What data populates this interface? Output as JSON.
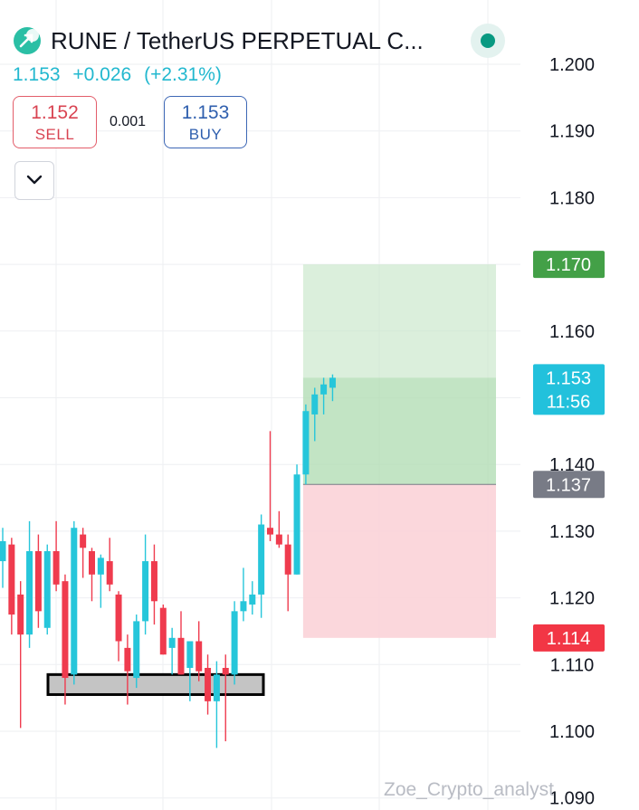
{
  "header": {
    "title": "RUNE / TetherUS PERPETUAL C...",
    "last_price": "1.153",
    "change": "+0.026",
    "change_pct": "(+2.31%)",
    "sell_price": "1.152",
    "sell_label": "SELL",
    "spread": "0.001",
    "buy_price": "1.153",
    "buy_label": "BUY",
    "status_color": "#089981"
  },
  "watermark": "Zoe_Crypto_analyst",
  "colors": {
    "up": "#26c6da",
    "down": "#ef3b4e",
    "grid": "#eeeff2",
    "axis_text": "#131722",
    "profit_zone": "#c8e6c9",
    "loss_zone": "#fbd3d8"
  },
  "chart_data": {
    "type": "candlestick",
    "title": "RUNE / TetherUS PERPETUAL C...",
    "ylim": [
      1.09,
      1.2
    ],
    "y_ticks": [
      "1.200",
      "1.190",
      "1.180",
      "1.170",
      "1.160",
      "1.153",
      "1.140",
      "1.137",
      "1.130",
      "1.120",
      "1.114",
      "1.110",
      "1.100",
      "1.090"
    ],
    "grid": true,
    "price_labels": [
      {
        "label": "1.170",
        "sub": "",
        "color": "#43a047",
        "value": 1.17
      },
      {
        "label": "1.153",
        "sub": "11:56",
        "color": "#22c1dc",
        "value": 1.153
      },
      {
        "label": "1.137",
        "sub": "",
        "color": "#787b86",
        "value": 1.137
      },
      {
        "label": "1.114",
        "sub": "",
        "color": "#f23645",
        "value": 1.114
      }
    ],
    "position": {
      "entry": 1.137,
      "target": 1.17,
      "stop": 1.114,
      "current": 1.153
    },
    "support_zone": [
      1.1055,
      1.1085
    ],
    "candles": [
      {
        "o": 1.1255,
        "h": 1.1305,
        "l": 1.1215,
        "c": 1.1285
      },
      {
        "o": 1.128,
        "h": 1.129,
        "l": 1.1145,
        "c": 1.1175
      },
      {
        "o": 1.1205,
        "h": 1.1225,
        "l": 1.1005,
        "c": 1.1145
      },
      {
        "o": 1.1145,
        "h": 1.1315,
        "l": 1.1125,
        "c": 1.127
      },
      {
        "o": 1.127,
        "h": 1.1295,
        "l": 1.1155,
        "c": 1.118
      },
      {
        "o": 1.1155,
        "h": 1.128,
        "l": 1.1145,
        "c": 1.127
      },
      {
        "o": 1.127,
        "h": 1.1315,
        "l": 1.121,
        "c": 1.122
      },
      {
        "o": 1.1225,
        "h": 1.1235,
        "l": 1.104,
        "c": 1.108
      },
      {
        "o": 1.1085,
        "h": 1.1315,
        "l": 1.107,
        "c": 1.1305
      },
      {
        "o": 1.1295,
        "h": 1.1305,
        "l": 1.123,
        "c": 1.1275
      },
      {
        "o": 1.127,
        "h": 1.1275,
        "l": 1.1195,
        "c": 1.1235
      },
      {
        "o": 1.1235,
        "h": 1.1265,
        "l": 1.1185,
        "c": 1.126
      },
      {
        "o": 1.1255,
        "h": 1.129,
        "l": 1.121,
        "c": 1.122
      },
      {
        "o": 1.1205,
        "h": 1.121,
        "l": 1.1105,
        "c": 1.1135
      },
      {
        "o": 1.1125,
        "h": 1.1145,
        "l": 1.104,
        "c": 1.109
      },
      {
        "o": 1.108,
        "h": 1.1175,
        "l": 1.1065,
        "c": 1.1165
      },
      {
        "o": 1.1165,
        "h": 1.1295,
        "l": 1.1145,
        "c": 1.1255
      },
      {
        "o": 1.1255,
        "h": 1.128,
        "l": 1.116,
        "c": 1.1195
      },
      {
        "o": 1.1185,
        "h": 1.119,
        "l": 1.1115,
        "c": 1.1115
      },
      {
        "o": 1.1125,
        "h": 1.1155,
        "l": 1.1085,
        "c": 1.114
      },
      {
        "o": 1.114,
        "h": 1.118,
        "l": 1.1085,
        "c": 1.1085
      },
      {
        "o": 1.1095,
        "h": 1.1135,
        "l": 1.1045,
        "c": 1.1135
      },
      {
        "o": 1.1135,
        "h": 1.1165,
        "l": 1.1075,
        "c": 1.109
      },
      {
        "o": 1.1095,
        "h": 1.1115,
        "l": 1.1025,
        "c": 1.1045
      },
      {
        "o": 1.1045,
        "h": 1.1105,
        "l": 1.0975,
        "c": 1.1085
      },
      {
        "o": 1.1095,
        "h": 1.1115,
        "l": 1.0985,
        "c": 1.1085
      },
      {
        "o": 1.1085,
        "h": 1.1195,
        "l": 1.107,
        "c": 1.118
      },
      {
        "o": 1.118,
        "h": 1.1245,
        "l": 1.1165,
        "c": 1.1195
      },
      {
        "o": 1.119,
        "h": 1.1225,
        "l": 1.1175,
        "c": 1.1205
      },
      {
        "o": 1.1205,
        "h": 1.1325,
        "l": 1.117,
        "c": 1.131
      },
      {
        "o": 1.1305,
        "h": 1.145,
        "l": 1.1285,
        "c": 1.1295
      },
      {
        "o": 1.1295,
        "h": 1.133,
        "l": 1.1275,
        "c": 1.128
      },
      {
        "o": 1.128,
        "h": 1.1295,
        "l": 1.118,
        "c": 1.1235
      },
      {
        "o": 1.1235,
        "h": 1.14,
        "l": 1.1235,
        "c": 1.1385
      },
      {
        "o": 1.1385,
        "h": 1.149,
        "l": 1.137,
        "c": 1.148
      },
      {
        "o": 1.1475,
        "h": 1.1515,
        "l": 1.1435,
        "c": 1.1505
      },
      {
        "o": 1.1505,
        "h": 1.153,
        "l": 1.1475,
        "c": 1.152
      },
      {
        "o": 1.1515,
        "h": 1.1535,
        "l": 1.1495,
        "c": 1.153
      }
    ]
  }
}
